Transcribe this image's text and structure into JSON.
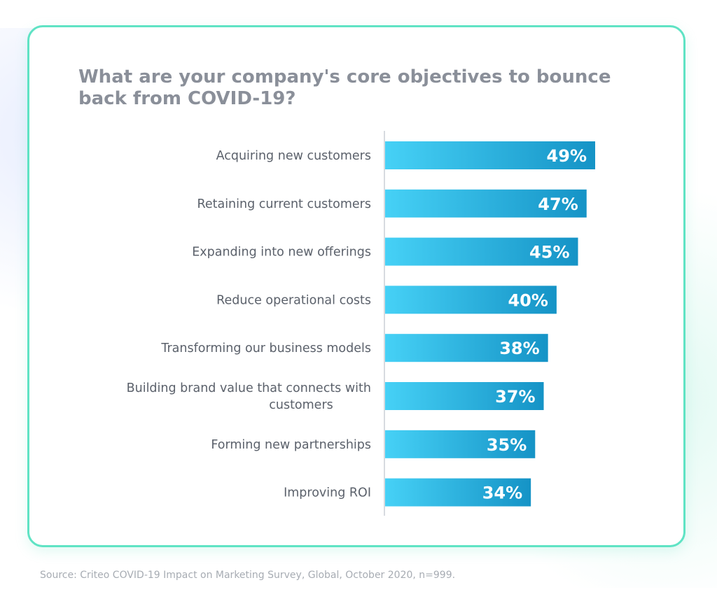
{
  "chart_data": {
    "type": "bar",
    "orientation": "horizontal",
    "title": "What are your company's core objectives to bounce back from COVID-19?",
    "categories": [
      "Acquiring new customers",
      "Retaining current customers",
      "Expanding into new offerings",
      "Reduce operational costs",
      "Transforming our business models",
      "Building brand value that connects with customers",
      "Forming new partnerships",
      "Improving ROI"
    ],
    "category_lines": [
      [
        "Acquiring new customers"
      ],
      [
        "Retaining current customers"
      ],
      [
        "Expanding into new offerings"
      ],
      [
        "Reduce operational costs"
      ],
      [
        "Transforming our business models"
      ],
      [
        "Building brand value that connects with",
        "customers"
      ],
      [
        "Forming new partnerships"
      ],
      [
        "Improving ROI"
      ]
    ],
    "values": [
      49,
      47,
      45,
      40,
      38,
      37,
      35,
      34
    ],
    "value_labels": [
      "49%",
      "47%",
      "45%",
      "40%",
      "38%",
      "37%",
      "35%",
      "34%"
    ],
    "unit": "%",
    "xlim": [
      0,
      100
    ],
    "grid": false,
    "legend": "none",
    "colors": {
      "bar_start": "#46d1f6",
      "bar_end": "#1593c6",
      "axis": "#d7dbe0",
      "title": "#8a8f99",
      "label": "#5b616b",
      "card_border": "#5fe3c4"
    }
  },
  "footer": {
    "source": "Source: Criteo COVID-19 Impact on Marketing Survey, Global, October 2020, n=999."
  }
}
